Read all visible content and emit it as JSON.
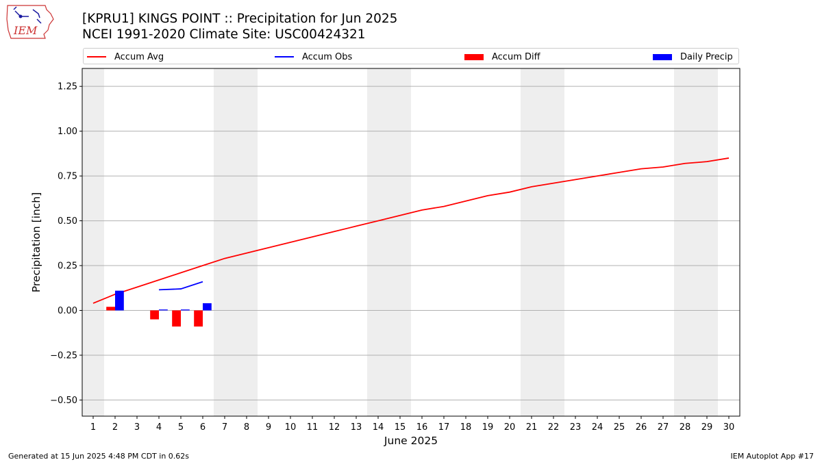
{
  "header": {
    "title": "[KPRU1] KINGS POINT :: Precipitation for Jun 2025",
    "subtitle": "NCEI 1991-2020 Climate Site: USC00424321"
  },
  "logo": {
    "icon": "iem-logo",
    "text": "IEM"
  },
  "legend": [
    {
      "label": "Accum Avg",
      "kind": "line",
      "color": "#ff0000"
    },
    {
      "label": "Accum Obs",
      "kind": "line",
      "color": "#0000ff"
    },
    {
      "label": "Accum Diff",
      "kind": "bar",
      "color": "#ff0000"
    },
    {
      "label": "Daily Precip",
      "kind": "bar",
      "color": "#0000ff"
    }
  ],
  "footer": {
    "left": "Generated at 15 Jun 2025 4:48 PM CDT in 0.62s",
    "right": "IEM Autoplot App #17"
  },
  "chart_data": {
    "type": "line",
    "xlabel": "June 2025",
    "ylabel": "Precipitation [inch]",
    "xlim": [
      0.5,
      30.5
    ],
    "ylim": [
      -0.59,
      1.35
    ],
    "x": [
      1,
      2,
      3,
      4,
      5,
      6,
      7,
      8,
      9,
      10,
      11,
      12,
      13,
      14,
      15,
      16,
      17,
      18,
      19,
      20,
      21,
      22,
      23,
      24,
      25,
      26,
      27,
      28,
      29,
      30
    ],
    "yticks": [
      -0.5,
      -0.25,
      0.0,
      0.25,
      0.5,
      0.75,
      1.0,
      1.25
    ],
    "ytick_labels": [
      "−0.50",
      "−0.25",
      "0.00",
      "0.25",
      "0.50",
      "0.75",
      "1.00",
      "1.25"
    ],
    "grid": "horizontal",
    "weekend_shading": [
      [
        0.5,
        1.5
      ],
      [
        6.5,
        8.5
      ],
      [
        13.5,
        15.5
      ],
      [
        20.5,
        22.5
      ],
      [
        27.5,
        29.5
      ]
    ],
    "shading_color": "#eeeeee",
    "series": [
      {
        "name": "Accum Avg",
        "kind": "line",
        "color": "#ff0000",
        "x": [
          1,
          2,
          3,
          4,
          5,
          6,
          7,
          8,
          9,
          10,
          11,
          12,
          13,
          14,
          15,
          16,
          17,
          18,
          19,
          20,
          21,
          22,
          23,
          24,
          25,
          26,
          27,
          28,
          29,
          30
        ],
        "values": [
          0.04,
          0.09,
          0.13,
          0.17,
          0.21,
          0.25,
          0.29,
          0.32,
          0.35,
          0.38,
          0.41,
          0.44,
          0.47,
          0.5,
          0.53,
          0.56,
          0.58,
          0.61,
          0.64,
          0.66,
          0.69,
          0.71,
          0.73,
          0.75,
          0.77,
          0.79,
          0.8,
          0.82,
          0.83,
          0.85
        ]
      },
      {
        "name": "Accum Obs",
        "kind": "line",
        "color": "#0000ff",
        "x": [
          4,
          5,
          6
        ],
        "values": [
          0.115,
          0.12,
          0.16
        ]
      },
      {
        "name": "Accum Diff",
        "kind": "bar",
        "color": "#ff0000",
        "offset": -0.2,
        "x": [
          2,
          4,
          5,
          6
        ],
        "values": [
          0.02,
          -0.05,
          -0.09,
          -0.09
        ]
      },
      {
        "name": "Daily Precip",
        "kind": "bar",
        "color": "#0000ff",
        "offset": 0.2,
        "x": [
          2,
          4,
          5,
          6
        ],
        "values": [
          0.11,
          0.005,
          0.005,
          0.04
        ]
      }
    ]
  }
}
